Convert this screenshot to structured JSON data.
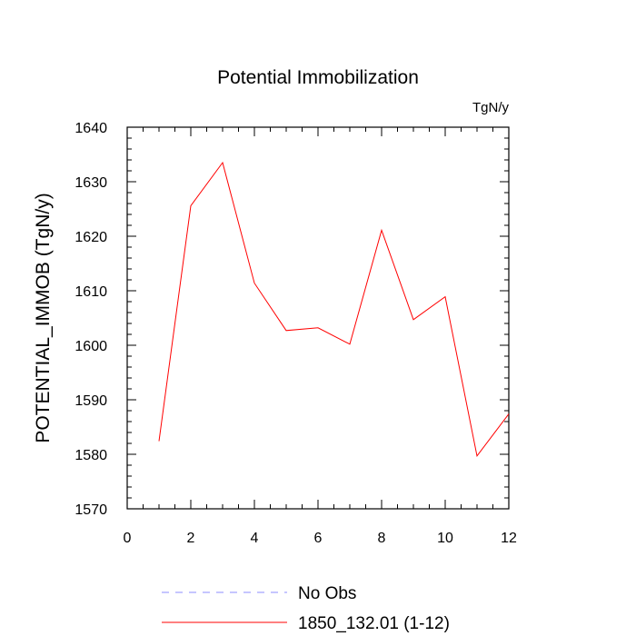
{
  "chart_data": {
    "type": "line",
    "title": "Potential Immobilization",
    "units": "TgN/y",
    "xlabel": "",
    "ylabel": "POTENTIAL_IMMOB  (TgN/y)",
    "xlim": [
      0,
      12
    ],
    "ylim": [
      1570,
      1640
    ],
    "x_ticks": [
      "0",
      "2",
      "4",
      "6",
      "8",
      "10",
      "12"
    ],
    "y_ticks": [
      "1570",
      "1580",
      "1590",
      "1600",
      "1610",
      "1620",
      "1630",
      "1640"
    ],
    "grid": false,
    "legend_position": "bottom",
    "series": [
      {
        "name": "No Obs",
        "color": "#8c8cff",
        "dash": "dashed",
        "x": [],
        "y": []
      },
      {
        "name": "1850_132.01 (1-12)",
        "color": "#ff0000",
        "dash": "solid",
        "x": [
          1,
          2,
          3,
          4,
          5,
          6,
          7,
          8,
          9,
          10,
          11,
          12
        ],
        "y": [
          1582.4,
          1625.6,
          1633.5,
          1611.4,
          1602.7,
          1603.2,
          1600.2,
          1621.1,
          1604.7,
          1608.9,
          1579.7,
          1587.4
        ]
      }
    ]
  }
}
